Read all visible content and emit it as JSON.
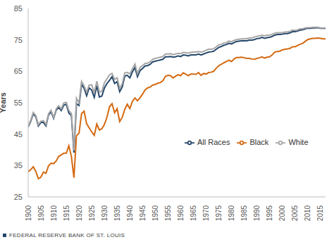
{
  "chart_data": {
    "type": "line",
    "y_label": "Years",
    "source": "FEDERAL RESERVE BANK OF ST. LOUIS",
    "x": [
      1900,
      1901,
      1902,
      1903,
      1904,
      1905,
      1906,
      1907,
      1908,
      1909,
      1910,
      1911,
      1912,
      1913,
      1914,
      1915,
      1916,
      1917,
      1918,
      1919,
      1920,
      1921,
      1922,
      1923,
      1924,
      1925,
      1926,
      1927,
      1928,
      1929,
      1930,
      1931,
      1932,
      1933,
      1934,
      1935,
      1936,
      1937,
      1938,
      1939,
      1940,
      1941,
      1942,
      1943,
      1944,
      1945,
      1946,
      1947,
      1948,
      1949,
      1950,
      1951,
      1952,
      1953,
      1954,
      1955,
      1956,
      1957,
      1958,
      1959,
      1960,
      1961,
      1962,
      1963,
      1964,
      1965,
      1966,
      1967,
      1968,
      1969,
      1970,
      1971,
      1972,
      1973,
      1974,
      1975,
      1976,
      1977,
      1978,
      1979,
      1980,
      1981,
      1982,
      1983,
      1984,
      1985,
      1986,
      1987,
      1988,
      1989,
      1990,
      1991,
      1992,
      1993,
      1994,
      1995,
      1996,
      1997,
      1998,
      1999,
      2000,
      2001,
      2002,
      2003,
      2004,
      2005,
      2006,
      2007,
      2008,
      2009,
      2010,
      2011,
      2012,
      2013,
      2014,
      2015,
      2016,
      2017
    ],
    "series": [
      {
        "name": "All Races",
        "color": "#24476b",
        "values": [
          47.3,
          49.1,
          51.5,
          50.5,
          47.6,
          48.7,
          48.7,
          47.6,
          51.1,
          52.1,
          50.0,
          52.6,
          53.5,
          52.5,
          54.2,
          54.5,
          51.7,
          50.9,
          39.1,
          54.7,
          54.1,
          60.8,
          59.6,
          57.2,
          59.7,
          59.0,
          56.7,
          60.4,
          56.8,
          57.1,
          59.7,
          61.1,
          62.1,
          63.3,
          61.1,
          61.7,
          58.5,
          60.0,
          63.5,
          63.7,
          62.9,
          64.8,
          66.2,
          63.3,
          65.2,
          65.9,
          66.7,
          66.8,
          67.2,
          68.0,
          68.2,
          68.4,
          68.6,
          68.8,
          69.6,
          69.6,
          69.7,
          69.5,
          69.6,
          69.9,
          69.7,
          70.2,
          70.1,
          69.9,
          70.2,
          70.2,
          70.2,
          70.5,
          70.2,
          70.5,
          70.8,
          71.1,
          71.2,
          71.4,
          72.0,
          72.6,
          72.9,
          73.3,
          73.5,
          73.9,
          73.7,
          74.1,
          74.5,
          74.6,
          74.7,
          74.7,
          74.7,
          74.9,
          74.9,
          75.1,
          75.4,
          75.5,
          75.8,
          75.5,
          75.7,
          75.8,
          76.1,
          76.5,
          76.7,
          76.7,
          76.8,
          77.0,
          77.0,
          77.2,
          77.6,
          77.6,
          77.8,
          78.1,
          78.2,
          78.5,
          78.7,
          78.7,
          78.8,
          78.8,
          78.9,
          78.7,
          78.7,
          78.6
        ]
      },
      {
        "name": "Black",
        "color": "#d46a12",
        "values": [
          33.0,
          33.7,
          34.6,
          33.1,
          30.8,
          31.3,
          32.9,
          32.5,
          34.9,
          35.7,
          35.6,
          36.4,
          37.9,
          38.4,
          38.9,
          38.9,
          41.3,
          37.9,
          31.1,
          44.5,
          45.3,
          51.5,
          52.3,
          48.3,
          47.0,
          45.7,
          44.6,
          48.2,
          46.3,
          46.7,
          48.1,
          50.4,
          53.7,
          54.7,
          51.8,
          53.1,
          49.0,
          50.3,
          52.9,
          54.5,
          53.1,
          55.4,
          56.5,
          55.6,
          56.6,
          57.7,
          59.1,
          59.7,
          60.0,
          60.6,
          60.8,
          61.2,
          61.4,
          62.0,
          63.4,
          63.7,
          63.6,
          62.9,
          63.4,
          63.9,
          63.6,
          64.5,
          64.1,
          63.6,
          64.1,
          64.1,
          64.0,
          64.6,
          63.7,
          64.3,
          64.1,
          64.6,
          64.7,
          65.0,
          66.0,
          66.8,
          67.2,
          67.7,
          68.1,
          68.5,
          68.1,
          68.9,
          69.4,
          69.4,
          69.5,
          69.3,
          69.1,
          69.1,
          68.9,
          68.8,
          69.1,
          69.3,
          69.6,
          69.2,
          69.5,
          69.6,
          70.2,
          71.1,
          71.3,
          71.4,
          71.8,
          72.0,
          72.1,
          72.3,
          72.8,
          72.8,
          73.2,
          73.6,
          73.9,
          74.5,
          75.1,
          75.3,
          75.5,
          75.5,
          75.6,
          75.5,
          75.3,
          75.3
        ]
      },
      {
        "name": "White",
        "color": "#a6a6a6",
        "values": [
          47.6,
          49.4,
          51.9,
          50.9,
          48.0,
          49.1,
          49.3,
          48.1,
          51.5,
          52.6,
          50.3,
          53.0,
          54.0,
          53.0,
          54.9,
          55.1,
          52.5,
          51.6,
          39.8,
          56.4,
          54.9,
          61.8,
          60.4,
          58.3,
          60.6,
          60.7,
          58.2,
          61.8,
          58.4,
          58.6,
          61.4,
          62.6,
          63.9,
          64.3,
          62.4,
          62.9,
          59.6,
          61.0,
          64.5,
          64.6,
          64.2,
          65.8,
          67.3,
          64.2,
          66.2,
          66.8,
          67.5,
          67.6,
          68.0,
          68.8,
          69.1,
          69.3,
          69.5,
          69.7,
          70.5,
          70.5,
          70.6,
          70.3,
          70.5,
          70.7,
          70.6,
          71.0,
          70.9,
          70.8,
          71.0,
          71.1,
          71.1,
          71.3,
          71.1,
          71.3,
          71.7,
          72.0,
          72.0,
          72.2,
          72.8,
          73.4,
          73.6,
          74.0,
          74.1,
          74.6,
          74.4,
          74.8,
          75.1,
          75.2,
          75.3,
          75.3,
          75.4,
          75.6,
          75.6,
          75.9,
          76.1,
          76.3,
          76.5,
          76.3,
          76.5,
          76.5,
          76.8,
          77.1,
          77.3,
          77.3,
          77.3,
          77.5,
          77.5,
          77.7,
          78.1,
          78.0,
          78.2,
          78.5,
          78.5,
          78.8,
          78.9,
          78.9,
          79.0,
          79.0,
          79.0,
          78.8,
          78.8,
          78.8
        ]
      }
    ],
    "xlim": [
      1900,
      2017
    ],
    "xticks": [
      1900,
      1905,
      1910,
      1915,
      1920,
      1925,
      1930,
      1935,
      1940,
      1945,
      1950,
      1955,
      1960,
      1965,
      1970,
      1975,
      1980,
      1985,
      1990,
      1995,
      2000,
      2005,
      2010,
      2015
    ],
    "ylim": [
      25,
      85
    ],
    "yticks": [
      25,
      35,
      45,
      55,
      65,
      75,
      85
    ],
    "grid": false,
    "legend": "right"
  }
}
